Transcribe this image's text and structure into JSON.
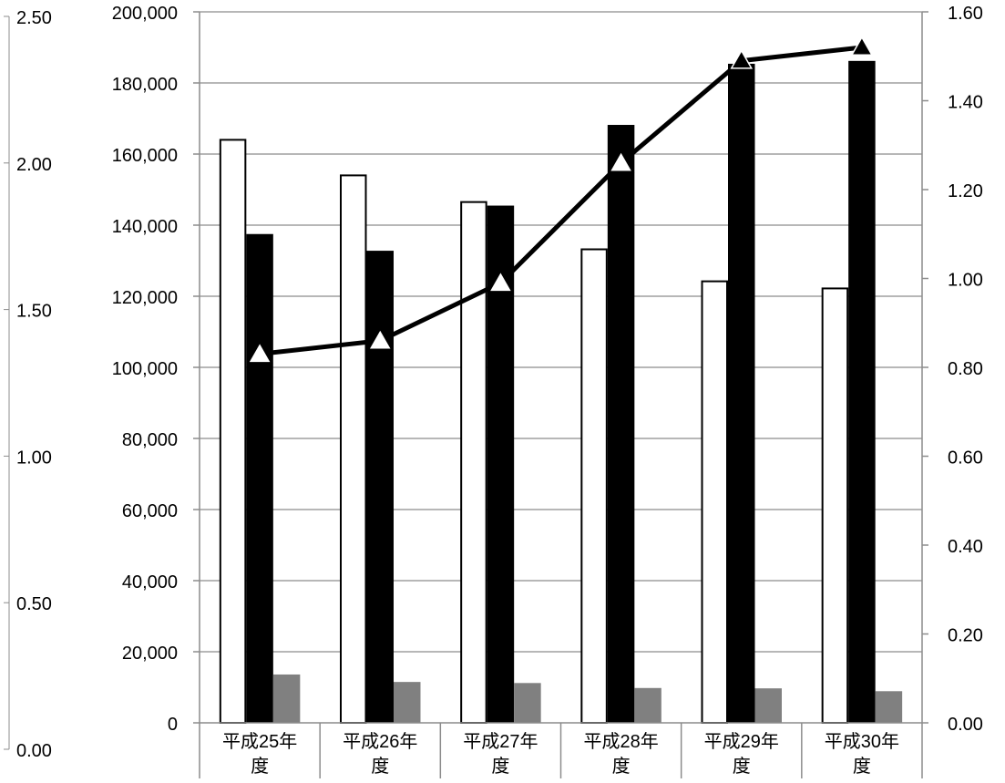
{
  "chart_data": {
    "type": "bar",
    "categories": [
      "平成25年度",
      "平成26年度",
      "平成27年度",
      "平成28年度",
      "平成29年度",
      "平成30年度"
    ],
    "category_lines": [
      [
        "平成25年",
        "度"
      ],
      [
        "平成26年",
        "度"
      ],
      [
        "平成27年",
        "度"
      ],
      [
        "平成28年",
        "度"
      ],
      [
        "平成29年",
        "度"
      ],
      [
        "平成30年",
        "度"
      ]
    ],
    "series": [
      {
        "values": [
          164000,
          154000,
          146500,
          133200,
          124200,
          122200
        ],
        "color": "#ffffff",
        "axis": "primary",
        "kind": "bar"
      },
      {
        "values": [
          137500,
          132800,
          145500,
          168200,
          185400,
          186200
        ],
        "color": "#000000",
        "axis": "primary",
        "kind": "bar"
      },
      {
        "values": [
          13600,
          11500,
          11200,
          9800,
          9700,
          8900
        ],
        "color": "#808080",
        "axis": "primary",
        "kind": "bar"
      },
      {
        "values": [
          0.83,
          0.86,
          0.99,
          1.26,
          1.49,
          1.52
        ],
        "color": "#000000",
        "axis": "secondary",
        "kind": "line",
        "markers": [
          "open-triangle",
          "open-triangle",
          "open-triangle",
          "open-triangle",
          "filled-triangle",
          "filled-triangle"
        ]
      }
    ],
    "axes": {
      "left_outer": {
        "ticks": [
          "0.00",
          "0.50",
          "1.00",
          "1.50",
          "2.00",
          "2.50"
        ],
        "range": [
          0,
          2.5
        ]
      },
      "left": {
        "ticks": [
          "0",
          "20,000",
          "40,000",
          "60,000",
          "80,000",
          "100,000",
          "120,000",
          "140,000",
          "160,000",
          "180,000",
          "200,000"
        ],
        "range": [
          0,
          200000
        ]
      },
      "right": {
        "ticks": [
          "0.00",
          "0.20",
          "0.40",
          "0.60",
          "0.80",
          "1.00",
          "1.20",
          "1.40",
          "1.60"
        ],
        "range": [
          0,
          1.6
        ]
      }
    },
    "grid": true
  }
}
